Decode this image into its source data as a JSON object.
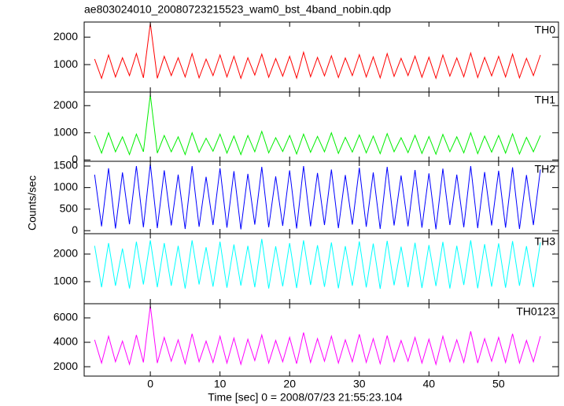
{
  "title": "ae803024010_20080723215523_wam0_bst_4band_nobin.qdp",
  "xlabel": "Time [sec] 0 = 2008/07/23 21:55:23.104",
  "ylabel": "Counts/sec",
  "chart_data": [
    {
      "type": "line",
      "label": "TH0",
      "color": "#ff0000",
      "xlim": [
        -9.5,
        58.6
      ],
      "xticks": [
        0,
        10,
        20,
        30,
        40,
        50
      ],
      "ylim": [
        0,
        2550
      ],
      "yticks": [
        1000,
        2000
      ],
      "x": [
        -8,
        -7,
        -6,
        -5,
        -4,
        -3,
        -2,
        -1,
        0,
        1,
        2,
        3,
        4,
        5,
        6,
        7,
        8,
        9,
        10,
        11,
        12,
        13,
        14,
        15,
        16,
        17,
        18,
        19,
        20,
        21,
        22,
        23,
        24,
        25,
        26,
        27,
        28,
        29,
        30,
        31,
        32,
        33,
        34,
        35,
        36,
        37,
        38,
        39,
        40,
        41,
        42,
        43,
        44,
        45,
        46,
        47,
        48,
        49,
        50,
        51,
        52,
        53,
        54,
        55,
        56
      ],
      "values": [
        1200,
        500,
        1350,
        550,
        1250,
        600,
        1400,
        520,
        2500,
        500,
        1300,
        600,
        1250,
        550,
        1400,
        520,
        1200,
        600,
        1350,
        550,
        1300,
        500,
        1250,
        620,
        1380,
        540,
        1220,
        580,
        1300,
        510,
        1450,
        560,
        1260,
        590,
        1320,
        530,
        1240,
        600,
        1360,
        550,
        1280,
        520,
        1400,
        570,
        1230,
        600,
        1310,
        540,
        1270,
        500,
        1350,
        580,
        1240,
        560,
        1420,
        530,
        1260,
        590,
        1300,
        550,
        1380,
        520,
        1230,
        600,
        1350
      ]
    },
    {
      "type": "line",
      "label": "TH1",
      "color": "#00ee00",
      "xlim": [
        -9.5,
        58.6
      ],
      "xticks": [
        0,
        10,
        20,
        30,
        40,
        50
      ],
      "ylim": [
        -50,
        2500
      ],
      "yticks": [
        0,
        1000,
        2000
      ],
      "x": [
        -8,
        -7,
        -6,
        -5,
        -4,
        -3,
        -2,
        -1,
        0,
        1,
        2,
        3,
        4,
        5,
        6,
        7,
        8,
        9,
        10,
        11,
        12,
        13,
        14,
        15,
        16,
        17,
        18,
        19,
        20,
        21,
        22,
        23,
        24,
        25,
        26,
        27,
        28,
        29,
        30,
        31,
        32,
        33,
        34,
        35,
        36,
        37,
        38,
        39,
        40,
        41,
        42,
        43,
        44,
        45,
        46,
        47,
        48,
        49,
        50,
        51,
        52,
        53,
        54,
        55,
        56
      ],
      "values": [
        900,
        250,
        1000,
        300,
        850,
        200,
        950,
        300,
        2400,
        250,
        900,
        300,
        850,
        200,
        1000,
        280,
        800,
        320,
        950,
        250,
        880,
        200,
        900,
        300,
        1050,
        260,
        820,
        310,
        900,
        220,
        950,
        280,
        870,
        300,
        1000,
        240,
        830,
        290,
        920,
        260,
        880,
        230,
        970,
        300,
        820,
        270,
        910,
        240,
        860,
        210,
        940,
        300,
        850,
        260,
        1000,
        230,
        880,
        290,
        900,
        250,
        960,
        220,
        830,
        300,
        900
      ]
    },
    {
      "type": "line",
      "label": "TH2",
      "color": "#0000ff",
      "xlim": [
        -9.5,
        58.6
      ],
      "xticks": [
        0,
        10,
        20,
        30,
        40,
        50
      ],
      "ylim": [
        -70,
        1610
      ],
      "yticks": [
        0,
        500,
        1000,
        1500
      ],
      "x": [
        -8,
        -7,
        -6,
        -5,
        -4,
        -3,
        -2,
        -1,
        0,
        1,
        2,
        3,
        4,
        5,
        6,
        7,
        8,
        9,
        10,
        11,
        12,
        13,
        14,
        15,
        16,
        17,
        18,
        19,
        20,
        21,
        22,
        23,
        24,
        25,
        26,
        27,
        28,
        29,
        30,
        31,
        32,
        33,
        34,
        35,
        36,
        37,
        38,
        39,
        40,
        41,
        42,
        43,
        44,
        45,
        46,
        47,
        48,
        49,
        50,
        51,
        52,
        53,
        54,
        55,
        56
      ],
      "values": [
        1300,
        100,
        1450,
        50,
        1350,
        150,
        1500,
        80,
        1550,
        60,
        1400,
        120,
        1300,
        40,
        1500,
        90,
        1250,
        130,
        1450,
        70,
        1380,
        30,
        1320,
        140,
        1480,
        80,
        1260,
        110,
        1400,
        50,
        1500,
        100,
        1340,
        130,
        1420,
        60,
        1290,
        140,
        1460,
        90,
        1350,
        40,
        1480,
        120,
        1280,
        100,
        1410,
        70,
        1330,
        30,
        1440,
        130,
        1300,
        80,
        1500,
        60,
        1360,
        120,
        1390,
        70,
        1470,
        40,
        1290,
        130,
        1420
      ]
    },
    {
      "type": "line",
      "label": "TH3",
      "color": "#00ffff",
      "xlim": [
        -9.5,
        58.6
      ],
      "xticks": [
        0,
        10,
        20,
        30,
        40,
        50
      ],
      "ylim": [
        200,
        2740
      ],
      "yticks": [
        1000,
        2000
      ],
      "x": [
        -8,
        -7,
        -6,
        -5,
        -4,
        -3,
        -2,
        -1,
        0,
        1,
        2,
        3,
        4,
        5,
        6,
        7,
        8,
        9,
        10,
        11,
        12,
        13,
        14,
        15,
        16,
        17,
        18,
        19,
        20,
        21,
        22,
        23,
        24,
        25,
        26,
        27,
        28,
        29,
        30,
        31,
        32,
        33,
        34,
        35,
        36,
        37,
        38,
        39,
        40,
        41,
        42,
        43,
        44,
        45,
        46,
        47,
        48,
        49,
        50,
        51,
        52,
        53,
        54,
        55,
        56
      ],
      "values": [
        2300,
        800,
        2400,
        850,
        2200,
        750,
        2450,
        900,
        2500,
        800,
        2400,
        850,
        2300,
        750,
        2500,
        900,
        2250,
        820,
        2450,
        780,
        2350,
        860,
        2300,
        800,
        2550,
        750,
        2280,
        830,
        2400,
        770,
        2500,
        880,
        2320,
        810,
        2420,
        760,
        2290,
        850,
        2460,
        790,
        2380,
        740,
        2480,
        870,
        2270,
        800,
        2410,
        770,
        2330,
        840,
        2440,
        750,
        2300,
        880,
        2500,
        760,
        2360,
        820,
        2390,
        780,
        2470,
        850,
        2290,
        800,
        2420
      ]
    },
    {
      "type": "line",
      "label": "TH0123",
      "color": "#ff00ff",
      "xlim": [
        -9.5,
        58.6
      ],
      "xticks": [
        0,
        10,
        20,
        30,
        40,
        50
      ],
      "ylim": [
        1230,
        7160
      ],
      "yticks": [
        2000,
        4000,
        6000
      ],
      "x": [
        -8,
        -7,
        -6,
        -5,
        -4,
        -3,
        -2,
        -1,
        0,
        1,
        2,
        3,
        4,
        5,
        6,
        7,
        8,
        9,
        10,
        11,
        12,
        13,
        14,
        15,
        16,
        17,
        18,
        19,
        20,
        21,
        22,
        23,
        24,
        25,
        26,
        27,
        28,
        29,
        30,
        31,
        32,
        33,
        34,
        35,
        36,
        37,
        38,
        39,
        40,
        41,
        42,
        43,
        44,
        45,
        46,
        47,
        48,
        49,
        50,
        51,
        52,
        53,
        54,
        55,
        56
      ],
      "values": [
        4200,
        2300,
        4500,
        2400,
        4100,
        2200,
        4600,
        2350,
        7000,
        2300,
        4400,
        2450,
        4200,
        2250,
        4700,
        2400,
        4100,
        2350,
        4500,
        2300,
        4350,
        2200,
        4250,
        2500,
        4600,
        2300,
        4150,
        2400,
        4400,
        2250,
        4800,
        2350,
        4300,
        2450,
        4500,
        2300,
        4200,
        2400,
        4650,
        2350,
        4300,
        2250,
        4550,
        2400,
        4150,
        2450,
        4400,
        2300,
        4250,
        2200,
        4500,
        2400,
        4200,
        2350,
        4900,
        2300,
        4300,
        2450,
        4400,
        2350,
        4700,
        2300,
        4150,
        2400,
        4500
      ]
    }
  ]
}
